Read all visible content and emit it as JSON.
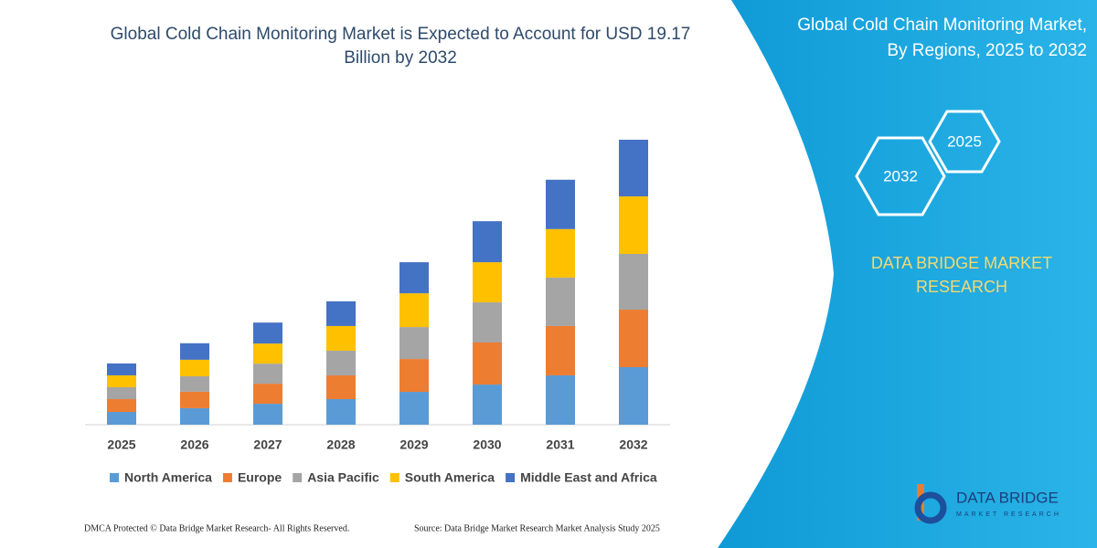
{
  "chart_data": {
    "type": "stacked-bar",
    "title": [
      "Global Cold Chain Monitoring Market is Expected to Account for USD 19.17",
      "Billion by 2032"
    ],
    "categories": [
      "2025",
      "2026",
      "2027",
      "2028",
      "2029",
      "2030",
      "2031",
      "2032"
    ],
    "series": [
      {
        "name": "North America",
        "color": "#5b9bd5",
        "values": [
          0.86,
          1.11,
          1.41,
          1.72,
          2.21,
          2.7,
          3.32,
          3.87
        ]
      },
      {
        "name": "Europe",
        "color": "#ed7d31",
        "values": [
          0.86,
          1.11,
          1.35,
          1.6,
          2.21,
          2.83,
          3.32,
          3.87
        ]
      },
      {
        "name": "Asia Pacific",
        "color": "#a5a5a5",
        "values": [
          0.8,
          1.04,
          1.35,
          1.66,
          2.15,
          2.7,
          3.26,
          3.75
        ]
      },
      {
        "name": "South America",
        "color": "#ffc000",
        "values": [
          0.8,
          1.11,
          1.35,
          1.66,
          2.27,
          2.7,
          3.26,
          3.87
        ]
      },
      {
        "name": "Middle East and Africa",
        "color": "#4472c4",
        "values": [
          0.8,
          1.11,
          1.41,
          1.66,
          2.09,
          2.76,
          3.32,
          3.81
        ]
      }
    ],
    "ylim": [
      0,
      19.17
    ],
    "legend": "bottom"
  },
  "panel": {
    "title": [
      "Global Cold Chain Monitoring Market,",
      "By Regions, 2025 to 2032"
    ],
    "hex_start": "2025",
    "hex_end": "2032",
    "brand": [
      "DATA BRIDGE MARKET",
      "RESEARCH"
    ],
    "logo": "DATA BRIDGE",
    "logo_sub": "MARKET RESEARCH"
  },
  "footer": {
    "left": "DMCA Protected © Data Bridge Market Research-  All Rights Reserved.",
    "right": "Source: Data Bridge Market Research  Market Analysis Study 2025"
  }
}
